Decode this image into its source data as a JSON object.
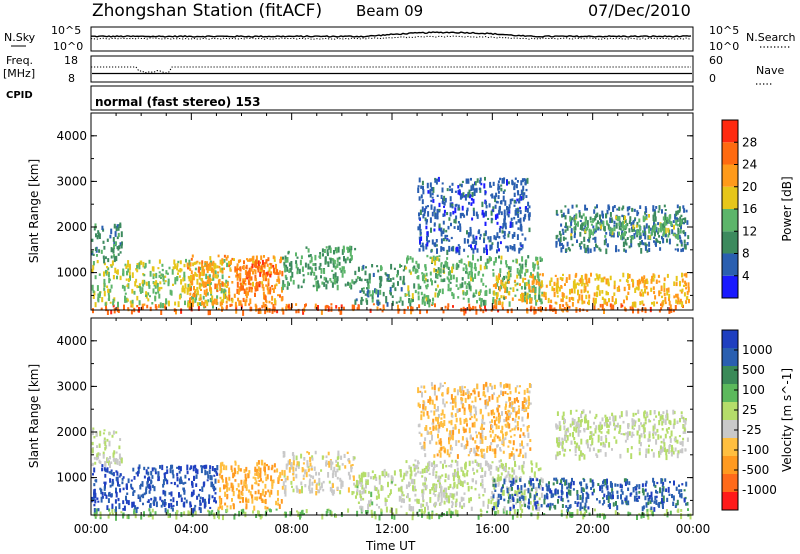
{
  "header": {
    "station": "Zhongshan Station (fitACF)",
    "beam": "Beam 09",
    "date": "07/Dec/2010"
  },
  "top_panels": {
    "nsky_label": "N.Sky",
    "nsky_ticks": [
      "10^5",
      "10^0"
    ],
    "nsearch_label": "N.Search",
    "nsearch_ticks": [
      "10^5",
      "10^0"
    ],
    "freq_label": "Freq.",
    "freq_unit": "[MHz]",
    "freq_ticks": [
      "18",
      "8"
    ],
    "nave_label": "Nave",
    "nave_ticks": [
      "60",
      "0"
    ],
    "cpid_label": "CPID",
    "cpid_text": "normal (fast stereo) 153"
  },
  "colors": {
    "power_scale": [
      "#1a1aff",
      "#2a5fb0",
      "#3c8a5e",
      "#5cb56a",
      "#e6c61a",
      "#ff9a1a",
      "#ff6a10",
      "#ff2a10"
    ],
    "velocity_scale": [
      "#ff1a1a",
      "#ff6a1a",
      "#ff9a20",
      "#ffbf40",
      "#c9c9c9",
      "#b5dd6a",
      "#5cb95c",
      "#3a8a58",
      "#2a5fb0",
      "#1f3fc0"
    ]
  },
  "chart_data": [
    {
      "type": "heatmap",
      "title": "Power",
      "ylabel": "Slant Range [km]",
      "xlabel": "",
      "ylim": [
        180,
        4500
      ],
      "yticks": [
        "4000",
        "3000",
        "2000",
        "1000"
      ],
      "ytick_values": [
        4000,
        3000,
        2000,
        1000
      ],
      "xticks": [
        "00:00",
        "04:00",
        "08:00",
        "12:00",
        "16:00",
        "20:00",
        "00:00"
      ],
      "xtick_hours": [
        0,
        4,
        8,
        12,
        16,
        20,
        24
      ],
      "colorbar_label": "Power [dB]",
      "colorbar_ticks": [
        "28",
        "24",
        "20",
        "16",
        "12",
        "8",
        "4"
      ],
      "colorbar_range": [
        0,
        32
      ],
      "regions": [
        {
          "t0": 0,
          "t1": 24,
          "r0": 180,
          "r1": 330,
          "value": 26
        },
        {
          "t0": 0,
          "t1": 5.5,
          "r0": 330,
          "r1": 1300,
          "value": 16
        },
        {
          "t0": 0,
          "t1": 1.2,
          "r0": 1300,
          "r1": 2100,
          "value": 10
        },
        {
          "t0": 3.8,
          "t1": 7.6,
          "r0": 350,
          "r1": 1400,
          "value": 22
        },
        {
          "t0": 5.8,
          "t1": 7.4,
          "r0": 600,
          "r1": 1300,
          "value": 26
        },
        {
          "t0": 7.6,
          "t1": 10.5,
          "r0": 700,
          "r1": 1600,
          "value": 12
        },
        {
          "t0": 10.5,
          "t1": 12.5,
          "r0": 350,
          "r1": 1200,
          "value": 10
        },
        {
          "t0": 12.5,
          "t1": 18.0,
          "r0": 350,
          "r1": 1400,
          "value": 14
        },
        {
          "t0": 16.0,
          "t1": 23.8,
          "r0": 350,
          "r1": 1000,
          "value": 20
        },
        {
          "t0": 13.0,
          "t1": 17.5,
          "r0": 1500,
          "r1": 3100,
          "value": 6
        },
        {
          "t0": 18.5,
          "t1": 23.8,
          "r0": 1500,
          "r1": 2500,
          "value": 8
        },
        {
          "t0": 19.0,
          "t1": 23.5,
          "r0": 1800,
          "r1": 2300,
          "value": 14
        }
      ]
    },
    {
      "type": "heatmap",
      "title": "Velocity",
      "ylabel": "Slant Range [km]",
      "xlabel": "Time UT",
      "ylim": [
        180,
        4500
      ],
      "yticks": [
        "4000",
        "3000",
        "2000",
        "1000"
      ],
      "ytick_values": [
        4000,
        3000,
        2000,
        1000
      ],
      "xticks": [
        "00:00",
        "04:00",
        "08:00",
        "12:00",
        "16:00",
        "20:00",
        "00:00"
      ],
      "xtick_hours": [
        0,
        4,
        8,
        12,
        16,
        20,
        24
      ],
      "colorbar_label": "Velocity [m s^-1]",
      "colorbar_ticks": [
        "1000",
        "500",
        "100",
        "25",
        "-25",
        "-100",
        "-500",
        "-1000"
      ],
      "colorbar_range": [
        -1000,
        1000
      ],
      "regions": [
        {
          "t0": 0,
          "t1": 24,
          "r0": 180,
          "r1": 330,
          "value": 200
        },
        {
          "t0": 0,
          "t1": 1.2,
          "r0": 1300,
          "r1": 2100,
          "value": 0
        },
        {
          "t0": 0,
          "t1": 5.0,
          "r0": 330,
          "r1": 1300,
          "value": 800
        },
        {
          "t0": 5.0,
          "t1": 7.6,
          "r0": 350,
          "r1": 1400,
          "value": -400
        },
        {
          "t0": 7.6,
          "t1": 10.5,
          "r0": 700,
          "r1": 1600,
          "value": -120
        },
        {
          "t0": 10.5,
          "t1": 12.5,
          "r0": 350,
          "r1": 1200,
          "value": 40
        },
        {
          "t0": 12.5,
          "t1": 18.0,
          "r0": 350,
          "r1": 1400,
          "value": 0
        },
        {
          "t0": 13.0,
          "t1": 17.5,
          "r0": 1500,
          "r1": 3100,
          "value": -300
        },
        {
          "t0": 16.0,
          "t1": 23.8,
          "r0": 350,
          "r1": 1000,
          "value": 700
        },
        {
          "t0": 18.5,
          "t1": 23.8,
          "r0": 1500,
          "r1": 2500,
          "value": 0
        }
      ]
    }
  ]
}
